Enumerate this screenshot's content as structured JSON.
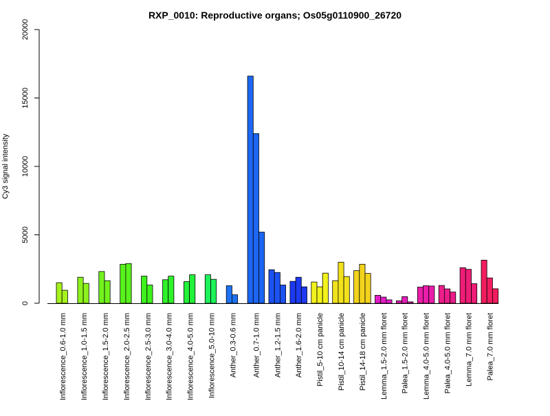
{
  "chart_data": {
    "type": "bar",
    "title": "RXP_0010: Reproductive organs; Os05g0110900_26720",
    "xlabel": "",
    "ylabel": "Cy3 signal intensity",
    "ylim": [
      0,
      20000
    ],
    "yticks": [
      0,
      5000,
      10000,
      15000,
      20000
    ],
    "grid": false,
    "legend": "none",
    "groups": [
      {
        "label": "Inflorescence_0.6-1.0 mm",
        "color": "#a6f21d",
        "values": [
          1500,
          950
        ]
      },
      {
        "label": "Inflorescence_1.0-1.5 mm",
        "color": "#8cf21d",
        "values": [
          1900,
          1450
        ]
      },
      {
        "label": "Inflorescence_1.5-2.0 mm",
        "color": "#72f21d",
        "values": [
          2320,
          1650
        ]
      },
      {
        "label": "Inflorescence_2.0-2.5 mm",
        "color": "#58f21d",
        "values": [
          2850,
          2900
        ]
      },
      {
        "label": "Inflorescence_2.5-3.0 mm",
        "color": "#3ef21d",
        "values": [
          1980,
          1330
        ]
      },
      {
        "label": "Inflorescence_3.0-4.0 mm",
        "color": "#2ef22a",
        "values": [
          1720,
          1980
        ]
      },
      {
        "label": "Inflorescence_4.0-5.0 mm",
        "color": "#22f23a",
        "values": [
          1580,
          2080
        ]
      },
      {
        "label": "Inflorescence_5.0-10 mm",
        "color": "#1df25a",
        "values": [
          2080,
          1750
        ]
      },
      {
        "label": "Anther_0.3-0.6 mm",
        "color": "#1d72f2",
        "values": [
          1280,
          620
        ]
      },
      {
        "label": "Anther_0.7-1.0 mm",
        "color": "#1d66f2",
        "values": [
          16600,
          12400,
          5200
        ]
      },
      {
        "label": "Anther_1.2-1.5 mm",
        "color": "#1d52f2",
        "values": [
          2450,
          2250,
          1330
        ]
      },
      {
        "label": "Anther_1.6-2.0 mm",
        "color": "#1d3af2",
        "values": [
          1600,
          1900,
          1200
        ]
      },
      {
        "label": "Pistil_5-10 cm panicle",
        "color": "#f2f21d",
        "values": [
          1550,
          1200,
          2200
        ]
      },
      {
        "label": "Pistil_10-14 cm panicle",
        "color": "#f2e21d",
        "values": [
          1650,
          3000,
          1950
        ]
      },
      {
        "label": "Pistil_14-18 cm panicle",
        "color": "#f2d21d",
        "values": [
          2380,
          2850,
          2180
        ]
      },
      {
        "label": "Lemma_1.5-2.0 mm floret",
        "color": "#e21dc6",
        "values": [
          580,
          450,
          250
        ]
      },
      {
        "label": "Palea_1.5-2.0 mm floret",
        "color": "#e21db8",
        "values": [
          180,
          480,
          100
        ]
      },
      {
        "label": "Lemma_4.0-5.0 mm floret",
        "color": "#ea1daa",
        "values": [
          1180,
          1280,
          1260
        ]
      },
      {
        "label": "Palea_4.0-5.0 mm floret",
        "color": "#ea1d8a",
        "values": [
          1300,
          1050,
          820
        ]
      },
      {
        "label": "Lemma_7.0 mm floret",
        "color": "#ee1d76",
        "values": [
          2600,
          2480,
          1430
        ]
      },
      {
        "label": "Palea_7.0 mm floret",
        "color": "#f21d5e",
        "values": [
          3150,
          1850,
          1060
        ]
      }
    ]
  }
}
